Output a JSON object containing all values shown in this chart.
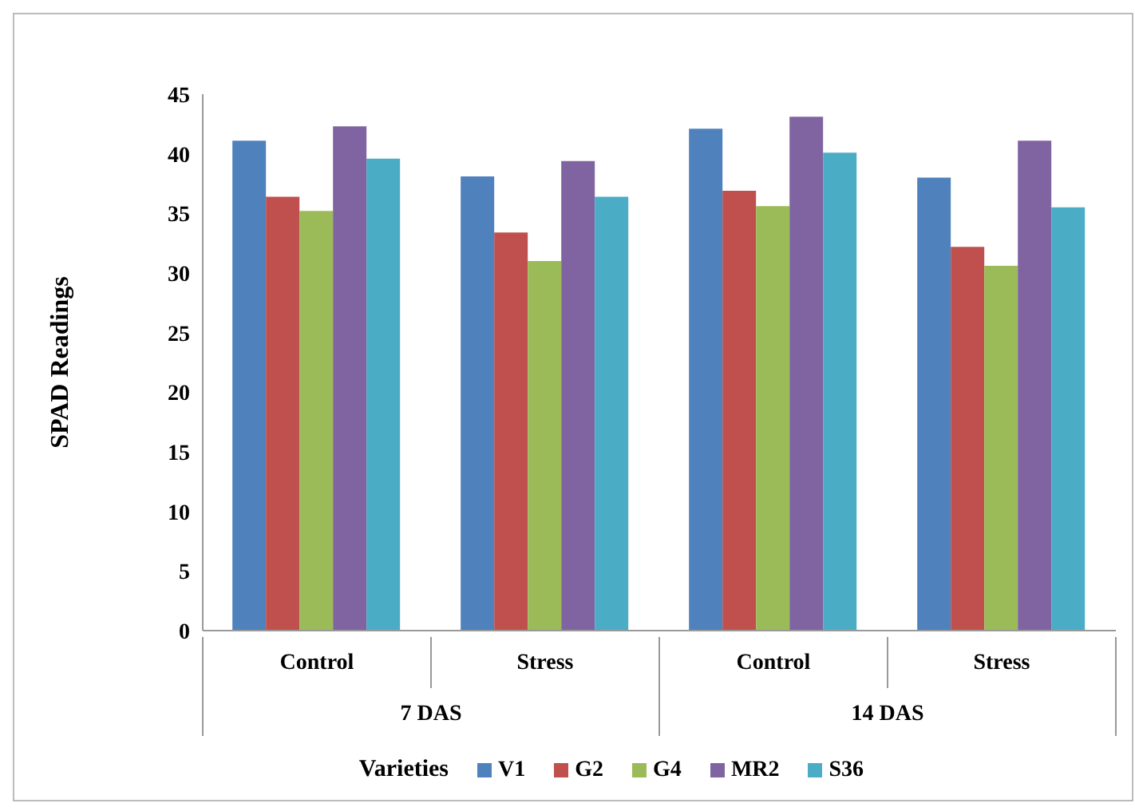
{
  "chart_data": {
    "type": "bar",
    "ylabel": "SPAD Readings",
    "legend_title": "Varieties",
    "categories": [
      "Control",
      "Stress",
      "Control",
      "Stress"
    ],
    "annotations": [
      "7 DAS",
      "14 DAS"
    ],
    "series": [
      {
        "name": "V1",
        "color": "#4f81bd",
        "values": [
          41.1,
          38.1,
          42.1,
          38.0
        ]
      },
      {
        "name": "G2",
        "color": "#c0504d",
        "values": [
          36.4,
          33.4,
          36.9,
          32.2
        ]
      },
      {
        "name": "G4",
        "color": "#9bbb59",
        "values": [
          35.2,
          31.0,
          35.6,
          30.6
        ]
      },
      {
        "name": "MR2",
        "color": "#8064a2",
        "values": [
          42.3,
          39.4,
          43.1,
          41.1
        ]
      },
      {
        "name": "S36",
        "color": "#4bacc6",
        "values": [
          39.6,
          36.4,
          40.1,
          35.5
        ]
      }
    ],
    "ylim": [
      0,
      45
    ],
    "yticks": [
      0,
      5,
      10,
      15,
      20,
      25,
      30,
      35,
      40,
      45
    ],
    "grid": false,
    "legend": "bottom"
  }
}
